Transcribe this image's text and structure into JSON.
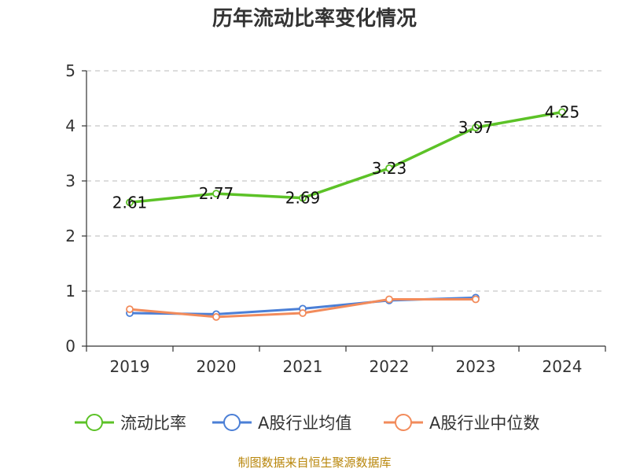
{
  "chart_data": {
    "type": "line",
    "title": "历年流动比率变化情况",
    "categories": [
      "2019",
      "2020",
      "2021",
      "2022",
      "2023",
      "2024"
    ],
    "ylim": [
      0,
      5
    ],
    "yticks": [
      "0",
      "1",
      "2",
      "3",
      "4",
      "5"
    ],
    "grid": true,
    "legend_position": "bottom",
    "series": [
      {
        "name": "流动比率",
        "color": "#5cc227",
        "values": [
          2.61,
          2.77,
          2.69,
          3.23,
          3.97,
          4.25
        ],
        "labels": [
          "2.61",
          "2.77",
          "2.69",
          "3.23",
          "3.97",
          "4.25"
        ]
      },
      {
        "name": "A股行业均值",
        "color": "#4b7fd6",
        "values": [
          0.6,
          0.58,
          0.68,
          0.83,
          0.88,
          null
        ]
      },
      {
        "name": "A股行业中位数",
        "color": "#f28b5b",
        "values": [
          0.67,
          0.53,
          0.6,
          0.85,
          0.85,
          null
        ]
      }
    ],
    "source": "制图数据来自恒生聚源数据库"
  }
}
